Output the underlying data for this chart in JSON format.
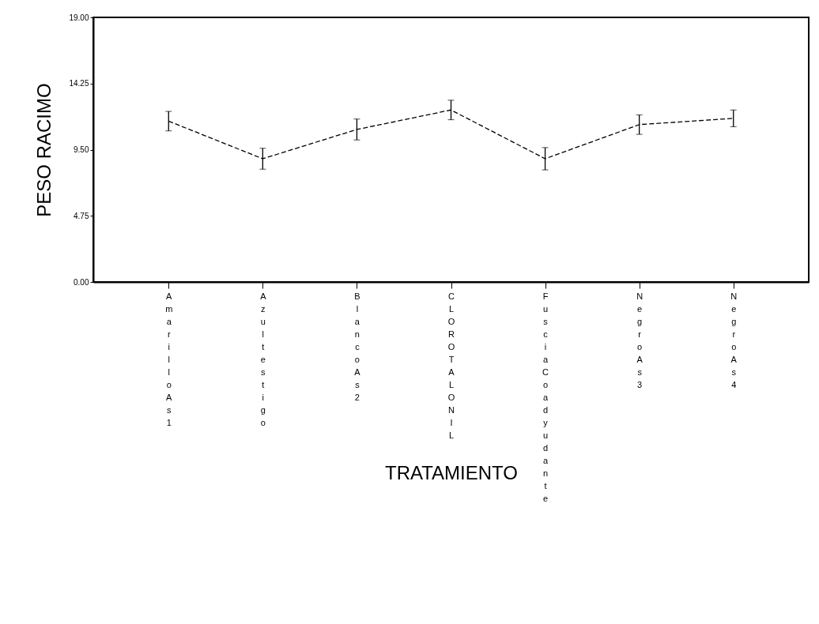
{
  "chart_data": {
    "type": "line",
    "xlabel": "TRATAMIENTO",
    "ylabel": "PESO RACIMO",
    "categories": [
      "Amarillo As1",
      "Azul testigo",
      "Blanco As2",
      "CLOROTALONIL",
      "Fuscia Coadyudante",
      "Negro As3",
      "Negro As4"
    ],
    "series": [
      {
        "color": "#000000",
        "values": [
          11.55,
          8.85,
          10.95,
          12.35,
          8.85,
          11.3,
          11.75
        ],
        "errors": [
          0.7,
          0.75,
          0.75,
          0.7,
          0.8,
          0.7,
          0.6
        ]
      }
    ],
    "ylim": [
      0,
      19
    ],
    "yticks": [
      {
        "value": 0,
        "label": "0.00"
      },
      {
        "value": 4.75,
        "label": "4.75"
      },
      {
        "value": 9.5,
        "label": "9.50"
      },
      {
        "value": 14.25,
        "label": "14.25"
      },
      {
        "value": 19,
        "label": "19.00"
      }
    ],
    "grid": false,
    "marker": "none",
    "line_style": "dashed"
  }
}
